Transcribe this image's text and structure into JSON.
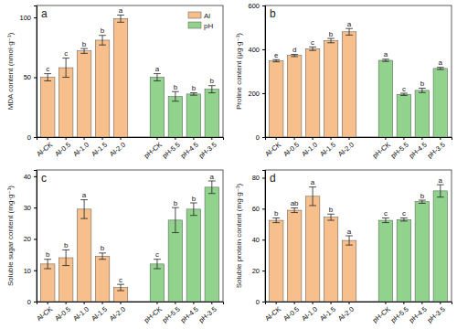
{
  "chart_data": [
    {
      "type": "bar",
      "title": "a",
      "y_label": "MDA content (nmol·g⁻¹)",
      "categories": [
        "Al-CK",
        "Al-0.5",
        "Al-1.0",
        "Al-1.5",
        "Al-2.0",
        "pH-CK",
        "pH-5.5",
        "pH-4.5",
        "pH-3.5"
      ],
      "series": [
        {
          "name": "Al",
          "color": "#f6bf8b",
          "values": [
            50,
            58,
            72,
            81,
            99,
            null,
            null,
            null,
            null
          ],
          "errors": [
            3,
            8,
            2,
            4,
            3,
            null,
            null,
            null,
            null
          ],
          "letters": [
            "c",
            "c",
            "b",
            "b",
            "a",
            null,
            null,
            null,
            null
          ]
        },
        {
          "name": "pH",
          "color": "#91d38d",
          "values": [
            null,
            null,
            null,
            null,
            null,
            50,
            34,
            36,
            40
          ],
          "errors": [
            null,
            null,
            null,
            null,
            null,
            3,
            4,
            1,
            3
          ],
          "letters": [
            null,
            null,
            null,
            null,
            null,
            "a",
            "b",
            "b",
            "b"
          ]
        }
      ],
      "ylim": [
        0,
        110
      ],
      "yticks": [
        0,
        50,
        100
      ],
      "legend": "top-right"
    },
    {
      "type": "bar",
      "title": "b",
      "y_label": "Proline content (μg·g⁻¹)",
      "categories": [
        "Al-CK",
        "Al-0.5",
        "Al-1.0",
        "Al-1.5",
        "Al-2.0",
        "pH-CK",
        "pH-5.5",
        "pH-4.5",
        "pH-3.5"
      ],
      "series": [
        {
          "name": "Al",
          "color": "#f6bf8b",
          "values": [
            348,
            372,
            403,
            440,
            480,
            null,
            null,
            null,
            null
          ],
          "errors": [
            5,
            5,
            8,
            10,
            15,
            null,
            null,
            null,
            null
          ],
          "letters": [
            "e",
            "d",
            "c",
            "b",
            "a",
            null,
            null,
            null,
            null
          ]
        },
        {
          "name": "pH",
          "color": "#91d38d",
          "values": [
            null,
            null,
            null,
            null,
            null,
            350,
            195,
            213,
            313
          ],
          "errors": [
            null,
            null,
            null,
            null,
            null,
            5,
            5,
            10,
            5
          ],
          "letters": [
            null,
            null,
            null,
            null,
            null,
            "a",
            "c",
            "b",
            "a"
          ]
        }
      ],
      "ylim": [
        0,
        600
      ],
      "yticks": [
        0,
        200,
        400,
        600
      ]
    },
    {
      "type": "bar",
      "title": "c",
      "y_label": "Soluble sugar content (mg·g⁻¹)",
      "categories": [
        "Al-CK",
        "Al-0.5",
        "Al-1.0",
        "Al-1.5",
        "Al-2.0",
        "pH-CK",
        "pH-5.5",
        "pH-4.5",
        "pH-3.5"
      ],
      "series": [
        {
          "name": "Al",
          "color": "#f6bf8b",
          "values": [
            12,
            14,
            29.5,
            14.5,
            4.5,
            null,
            null,
            null,
            null
          ],
          "errors": [
            1.5,
            2.5,
            3,
            1,
            1,
            null,
            null,
            null,
            null
          ],
          "letters": [
            "b",
            "b",
            "a",
            "b",
            "c",
            null,
            null,
            null,
            null
          ]
        },
        {
          "name": "pH",
          "color": "#91d38d",
          "values": [
            null,
            null,
            null,
            null,
            null,
            12,
            26,
            29.5,
            36.5
          ],
          "errors": [
            null,
            null,
            null,
            null,
            null,
            1.5,
            4,
            2,
            2
          ],
          "letters": [
            null,
            null,
            null,
            null,
            null,
            "c",
            "b",
            "b",
            "a"
          ]
        }
      ],
      "ylim": [
        0,
        42
      ],
      "yticks": [
        0,
        10,
        20,
        30,
        40
      ]
    },
    {
      "type": "bar",
      "title": "d",
      "y_label": "Soluble protein content (mg·g⁻¹)",
      "categories": [
        "Al-CK",
        "Al-0.5",
        "Al-1.0",
        "Al-1.5",
        "Al-2.0",
        "pH-CK",
        "pH-5.5",
        "pH-4.5",
        "pH-3.5"
      ],
      "series": [
        {
          "name": "Al",
          "color": "#f6bf8b",
          "values": [
            52.5,
            59,
            68,
            54.5,
            39.5,
            null,
            null,
            null,
            null
          ],
          "errors": [
            1.5,
            1.5,
            6,
            2,
            3,
            null,
            null,
            null,
            null
          ],
          "letters": [
            "b",
            "ab",
            "a",
            "b",
            "a",
            null,
            null,
            null,
            null
          ]
        },
        {
          "name": "pH",
          "color": "#91d38d",
          "values": [
            null,
            null,
            null,
            null,
            null,
            52.5,
            53,
            64.5,
            71.5
          ],
          "errors": [
            null,
            null,
            null,
            null,
            null,
            1.5,
            1,
            1,
            4
          ],
          "letters": [
            null,
            null,
            null,
            null,
            null,
            "c",
            "c",
            "b",
            "a"
          ]
        }
      ],
      "ylim": [
        0,
        85
      ],
      "yticks": [
        0,
        20,
        40,
        60,
        80
      ]
    }
  ]
}
